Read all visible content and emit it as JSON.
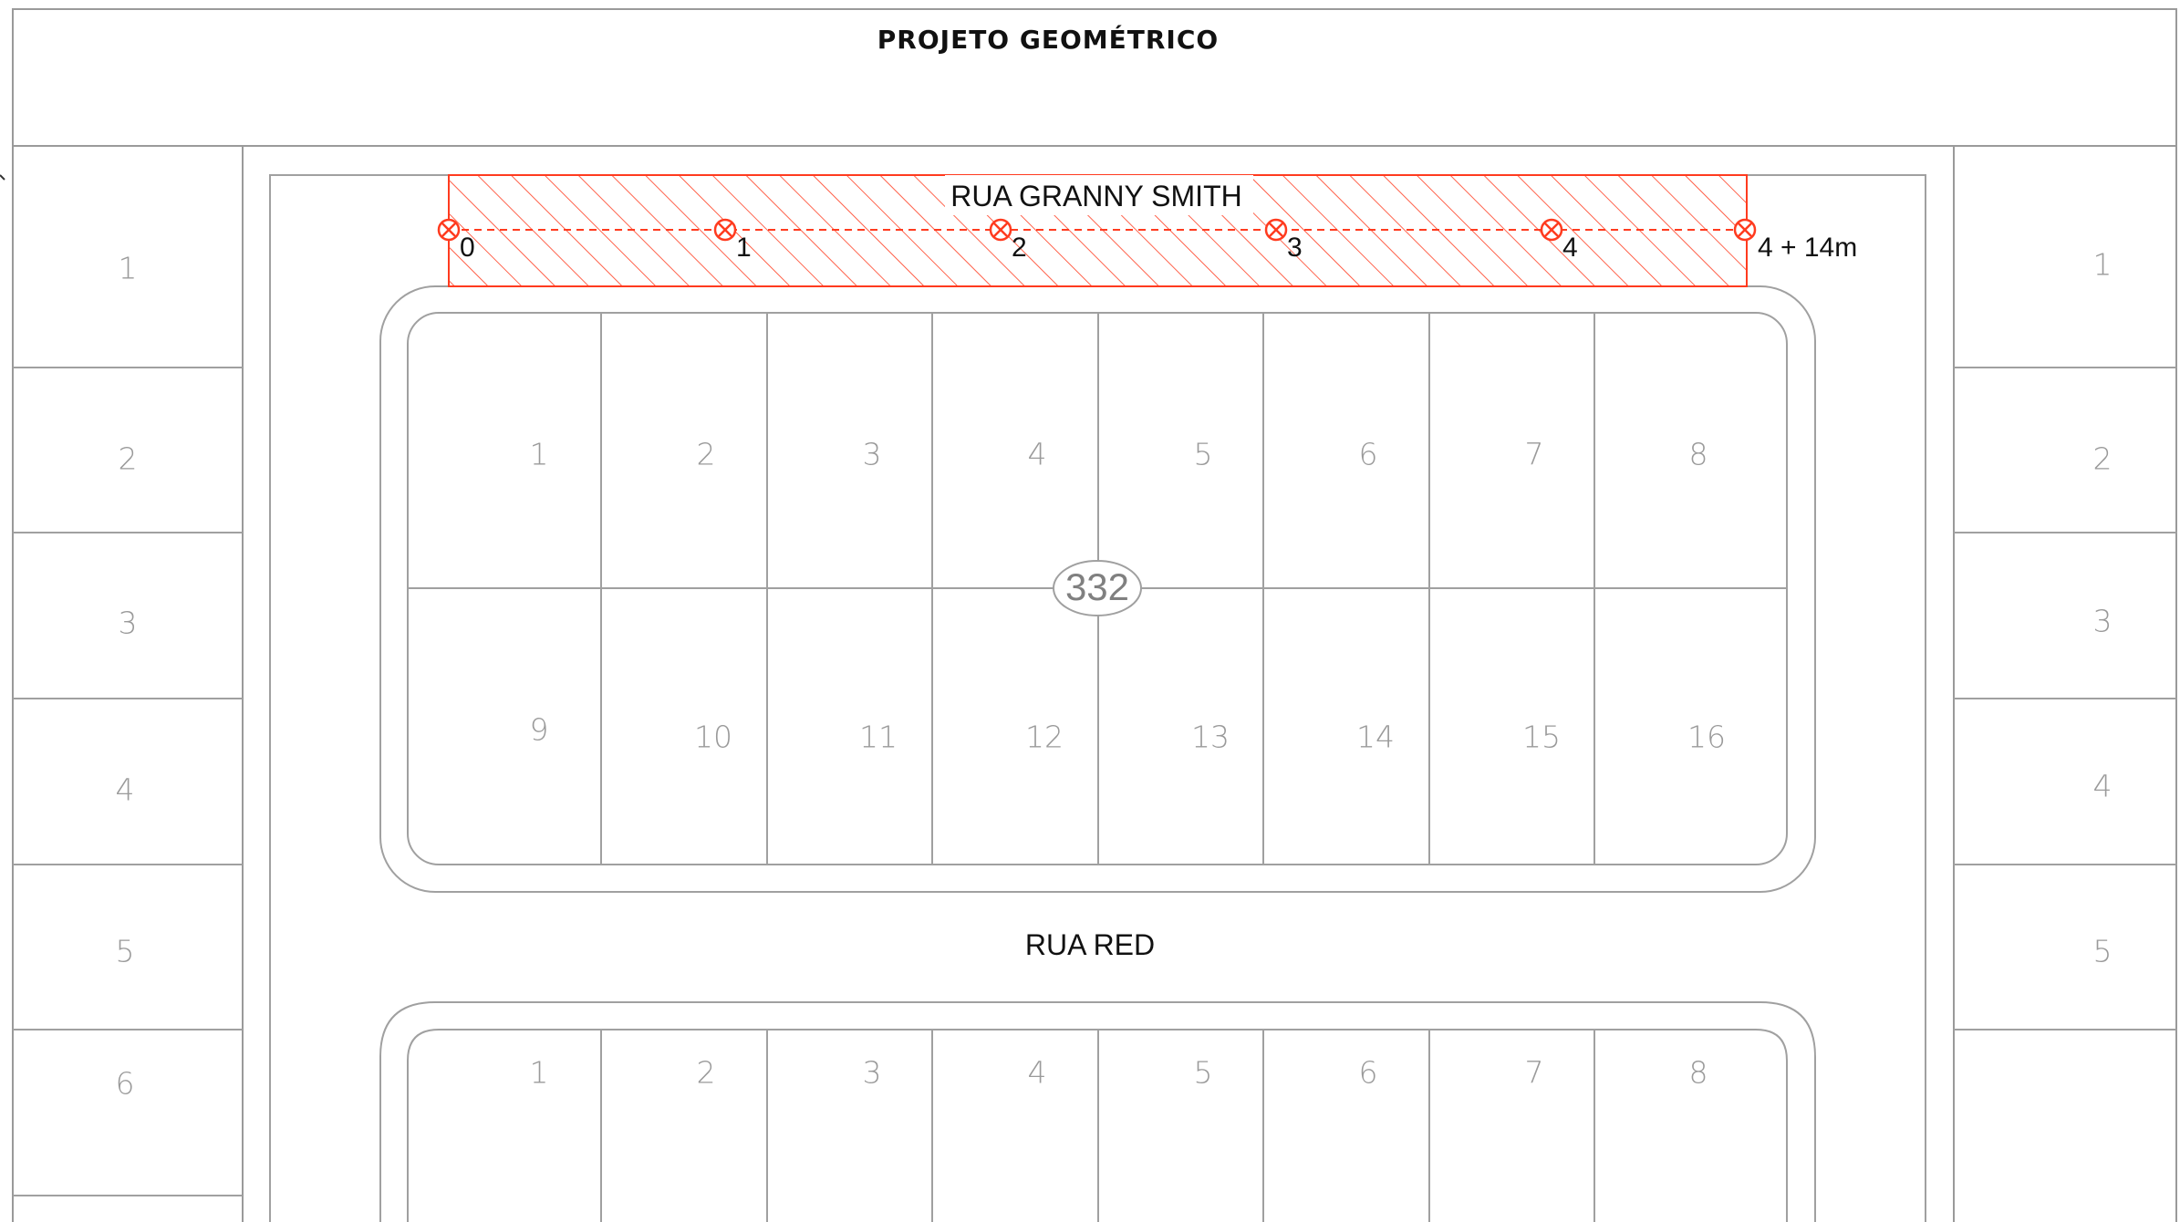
{
  "title": "PROJETO  GEOMÉTRICO",
  "streets": {
    "top": "RUA GRANNY SMITH",
    "middle": "RUA RED"
  },
  "block_label": "332",
  "colors": {
    "highlight": "#ff3b1f",
    "lines": "#a0a0a0",
    "text": "#111111"
  },
  "stations": [
    "0",
    "1",
    "2",
    "3",
    "4",
    "4 + 14m"
  ],
  "left_lots": [
    "1",
    "2",
    "3",
    "4",
    "5",
    "6"
  ],
  "right_lots": [
    "1",
    "2",
    "3",
    "4",
    "5"
  ],
  "block1_top_lots": [
    "1",
    "2",
    "3",
    "4",
    "5",
    "6",
    "7",
    "8"
  ],
  "block1_bottom_lots": [
    "9",
    "10",
    "11",
    "12",
    "13",
    "14",
    "15",
    "16"
  ],
  "block2_top_lots": [
    "1",
    "2",
    "3",
    "4",
    "5",
    "6",
    "7",
    "8"
  ]
}
